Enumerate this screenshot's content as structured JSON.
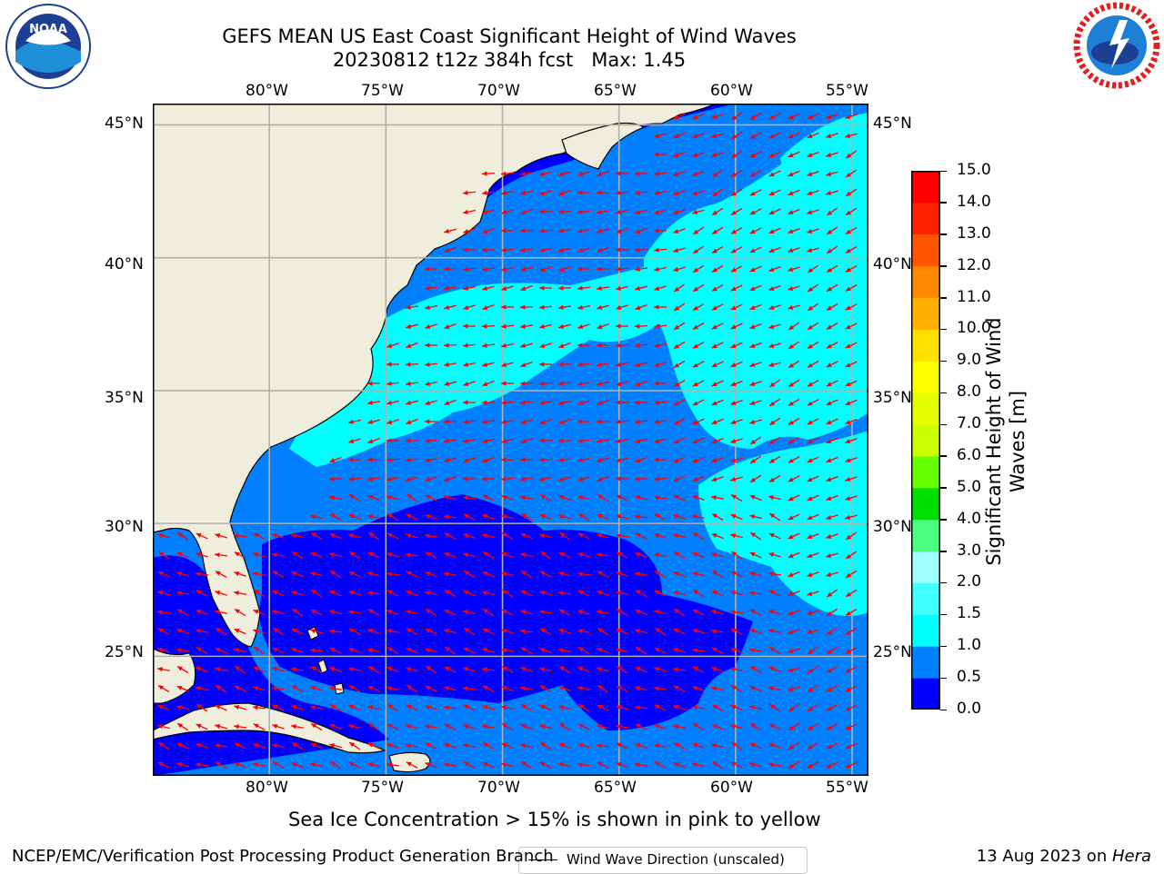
{
  "header": {
    "title_line1": "GEFS MEAN US East Coast Significant Height of Wind Waves",
    "title_line2": "20230812 t12z 384h fcst   Max: 1.45"
  },
  "logos": {
    "noaa_text": "NOAA",
    "noaa_ring": "NATIONAL OCEANIC AND ATMOSPHERIC ADMINISTRATION · U.S. DEPARTMENT OF COMMERCE",
    "nws_ring": "NATIONAL WEATHER SERVICE"
  },
  "map": {
    "lon_ticks": [
      "80°W",
      "75°W",
      "70°W",
      "65°W",
      "60°W",
      "55°W"
    ],
    "lat_ticks": [
      "45°N",
      "40°N",
      "35°N",
      "30°N",
      "25°N"
    ],
    "lon_values": [
      -80,
      -75,
      -70,
      -65,
      -60,
      -55
    ],
    "lat_values": [
      45,
      40,
      35,
      30,
      25
    ],
    "extent": {
      "lon_min": -85,
      "lon_max": -54.3,
      "lat_min": 20.5,
      "lat_max": 45.8
    },
    "legend_label": "Wind Wave Direction (unscaled)",
    "colors": {
      "land": "#efeedd",
      "ocean_mid": "#0080ff",
      "ocean_low": "#0000ff",
      "ocean_high": "#00ffff",
      "arrow": "#ff0000",
      "grid": "#b0b0b0"
    }
  },
  "colorbar": {
    "label_line1": "Significant Height of Wind",
    "label_line2": "Waves [m]",
    "ticks": [
      "0.0",
      "0.5",
      "1.0",
      "1.5",
      "2.0",
      "3.0",
      "4.0",
      "5.0",
      "6.0",
      "7.0",
      "8.0",
      "9.0",
      "10.0",
      "11.0",
      "12.0",
      "13.0",
      "14.0",
      "15.0"
    ],
    "colors": [
      "#0000ff",
      "#0080ff",
      "#00ffff",
      "#40ffff",
      "#a0ffff",
      "#4dff80",
      "#00e000",
      "#66ff00",
      "#ccff00",
      "#e6ff00",
      "#ffff00",
      "#ffe000",
      "#ffb000",
      "#ff8800",
      "#ff5500",
      "#ff2200",
      "#ff0000"
    ]
  },
  "subtitle": "Sea Ice Concentration > 15% is shown in pink to yellow",
  "footer": {
    "left": "NCEP/EMC/Verification Post Processing Product Generation Branch",
    "right_date": "13 Aug 2023 on ",
    "right_host": "Hera"
  }
}
